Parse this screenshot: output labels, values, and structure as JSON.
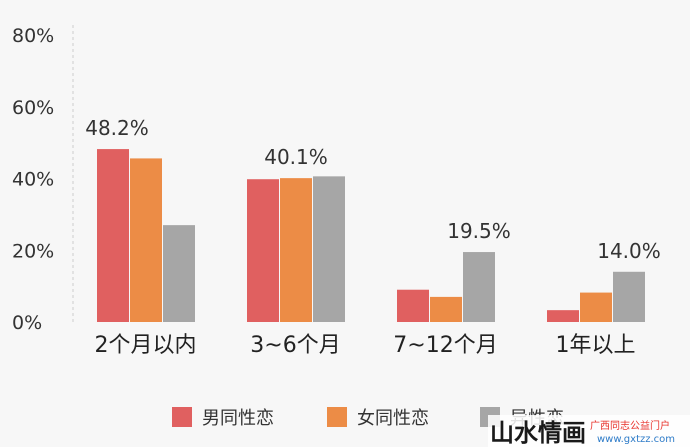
{
  "chart_data": {
    "type": "bar",
    "categories": [
      "2个月以内",
      "3~6个月",
      "7~12个月",
      "1年以上"
    ],
    "series": [
      {
        "name": "男同性恋",
        "color": "#e06060",
        "values": [
          48.2,
          39.8,
          9.0,
          3.3
        ]
      },
      {
        "name": "女同性恋",
        "color": "#ec8c46",
        "values": [
          45.6,
          40.1,
          7.0,
          8.2
        ]
      },
      {
        "name": "异性恋",
        "color": "#a6a6a6",
        "values": [
          27.0,
          40.6,
          19.5,
          14.0
        ]
      }
    ],
    "data_labels": [
      "48.2%",
      "40.1%",
      "19.5%",
      "14.0%"
    ],
    "y_ticks": [
      "0%",
      "20%",
      "40%",
      "60%",
      "80%"
    ],
    "ylim": [
      0,
      80
    ],
    "title": "",
    "xlabel": "",
    "ylabel": "",
    "grid": false,
    "legend_position": "bottom"
  },
  "watermark": {
    "main": "山水情画",
    "site": "广西同志公益门户",
    "url": "www.gxtzz.com"
  }
}
